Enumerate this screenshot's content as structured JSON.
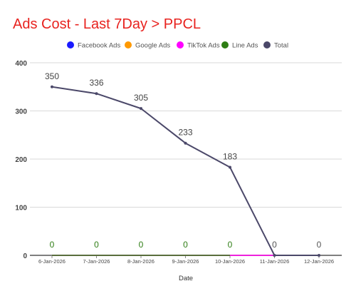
{
  "chart_data": {
    "type": "line",
    "title": "Ads Cost - Last 7Day > PPCL",
    "xlabel": "Date",
    "ylabel": "",
    "ylim": [
      0,
      400
    ],
    "yticks": [
      0,
      100,
      200,
      300,
      400
    ],
    "grid": true,
    "legend_position": "top",
    "categories": [
      "6-Jan-2026",
      "7-Jan-2026",
      "8-Jan-2026",
      "9-Jan-2026",
      "10-Jan-2026",
      "11-Jan-2026",
      "12-Jan-2026"
    ],
    "series": [
      {
        "name": "Facebook Ads",
        "color": "#1a1aff",
        "values": [
          0,
          0,
          0,
          0,
          0,
          0,
          0
        ]
      },
      {
        "name": "Google Ads",
        "color": "#ff9900",
        "values": [
          0,
          0,
          0,
          0,
          0,
          0,
          0
        ]
      },
      {
        "name": "TikTok Ads",
        "color": "#ff00ff",
        "values": [
          0,
          0,
          0,
          0,
          0,
          0,
          0
        ]
      },
      {
        "name": "Line Ads",
        "color": "#2e7d14",
        "values": [
          0,
          0,
          0,
          0,
          0,
          null,
          null
        ]
      },
      {
        "name": "Total",
        "color": "#4b4869",
        "values": [
          350,
          336,
          305,
          233,
          183,
          0,
          0
        ]
      }
    ],
    "data_labels": [
      "350",
      "336",
      "305",
      "233",
      "183",
      "0",
      "0"
    ],
    "line_ads_labels": [
      "0",
      "0",
      "0",
      "0",
      "0"
    ]
  }
}
